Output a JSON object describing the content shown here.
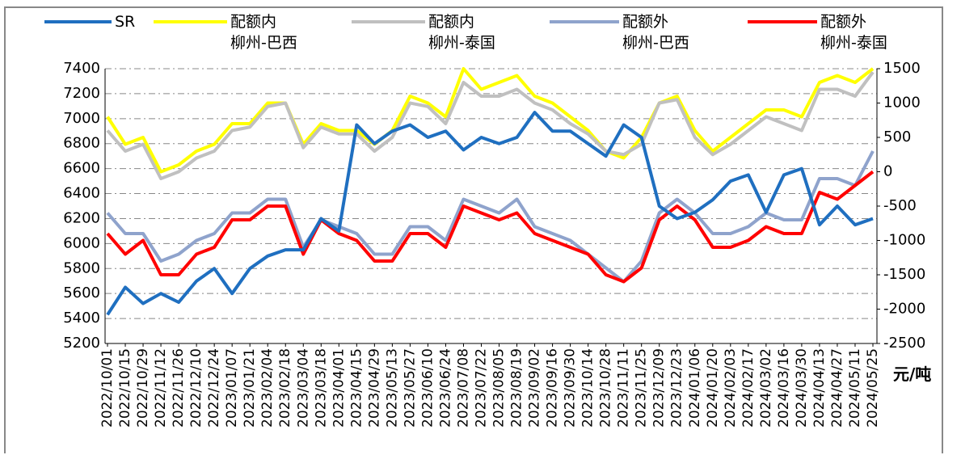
{
  "chart_data": {
    "type": "line",
    "unit_label": "元/吨",
    "categories": [
      "2022/10/01",
      "2022/10/15",
      "2022/10/29",
      "2022/11/12",
      "2022/11/26",
      "2022/12/10",
      "2022/12/24",
      "2023/01/07",
      "2023/01/21",
      "2023/02/04",
      "2023/02/18",
      "2023/03/04",
      "2023/03/18",
      "2023/04/01",
      "2023/04/15",
      "2023/04/29",
      "2023/05/13",
      "2023/05/27",
      "2023/06/10",
      "2023/06/24",
      "2023/07/08",
      "2023/07/22",
      "2023/08/05",
      "2023/08/19",
      "2023/09/02",
      "2023/09/16",
      "2023/09/30",
      "2023/10/14",
      "2023/10/28",
      "2023/11/11",
      "2023/11/25",
      "2023/12/09",
      "2023/12/23",
      "2024/01/06",
      "2024/01/20",
      "2024/02/03",
      "2024/02/17",
      "2024/03/02",
      "2024/03/16",
      "2024/03/30",
      "2024/04/13",
      "2024/04/27",
      "2024/05/11",
      "2024/05/25"
    ],
    "ylim": [
      5200,
      7400
    ],
    "yticks": [
      5200,
      5400,
      5600,
      5800,
      6000,
      6200,
      6400,
      6600,
      6800,
      7000,
      7200,
      7400
    ],
    "y2lim": [
      -2500,
      1500
    ],
    "y2ticks": [
      -2500,
      -2000,
      -1500,
      -1000,
      -500,
      0,
      500,
      1000,
      1500
    ],
    "grid": true,
    "series": [
      {
        "name": "SR",
        "color": "#1f6fc0",
        "values": [
          5430,
          5650,
          5520,
          5600,
          5530,
          5700,
          5800,
          5600,
          5800,
          5900,
          5950,
          5950,
          6200,
          6100,
          6950,
          6800,
          6900,
          6950,
          6850,
          6900,
          6750,
          6850,
          6800,
          6850,
          7050,
          6900,
          6900,
          6800,
          6700,
          6950,
          6850,
          6300,
          6200,
          6250,
          6350,
          6500,
          6550,
          6250,
          6550,
          6600,
          6150,
          6300,
          6150,
          6200
        ]
      },
      {
        "name": "配额内\n柳州-巴西",
        "color": "#ffff00",
        "axis": "y2",
        "values": [
          800,
          400,
          500,
          0,
          100,
          300,
          400,
          700,
          700,
          1000,
          1000,
          400,
          700,
          600,
          600,
          400,
          600,
          1100,
          1000,
          800,
          1500,
          1200,
          1300,
          1400,
          1100,
          1000,
          800,
          600,
          300,
          200,
          500,
          1000,
          1100,
          600,
          300,
          500,
          700,
          900,
          900,
          800,
          1300,
          1400,
          1300,
          1500
        ]
      },
      {
        "name": "配额内\n柳州-泰国",
        "color": "#c0c0c0",
        "axis": "y2",
        "values": [
          600,
          300,
          400,
          -100,
          0,
          200,
          300,
          600,
          650,
          950,
          1000,
          350,
          650,
          550,
          550,
          300,
          500,
          1000,
          950,
          700,
          1300,
          1100,
          1100,
          1200,
          1000,
          900,
          700,
          550,
          300,
          250,
          400,
          1000,
          1050,
          500,
          250,
          400,
          600,
          800,
          700,
          600,
          1200,
          1200,
          1100,
          1450
        ]
      },
      {
        "name": "配额外\n柳州-巴西",
        "color": "#8fa3cc",
        "axis": "y2",
        "values": [
          -600,
          -900,
          -900,
          -1300,
          -1200,
          -1000,
          -900,
          -600,
          -600,
          -400,
          -400,
          -1100,
          -700,
          -800,
          -900,
          -1200,
          -1200,
          -800,
          -800,
          -1000,
          -400,
          -500,
          -600,
          -400,
          -800,
          -900,
          -1000,
          -1200,
          -1400,
          -1600,
          -1300,
          -600,
          -400,
          -600,
          -900,
          -900,
          -800,
          -600,
          -700,
          -700,
          -100,
          -100,
          -200,
          300
        ]
      },
      {
        "name": "配额外\n柳州-泰国",
        "color": "#ff0000",
        "axis": "y2",
        "values": [
          -900,
          -1200,
          -1000,
          -1500,
          -1500,
          -1200,
          -1100,
          -700,
          -700,
          -500,
          -500,
          -1200,
          -700,
          -900,
          -1000,
          -1300,
          -1300,
          -900,
          -900,
          -1100,
          -500,
          -600,
          -700,
          -600,
          -900,
          -1000,
          -1100,
          -1200,
          -1500,
          -1600,
          -1400,
          -700,
          -500,
          -700,
          -1100,
          -1100,
          -1000,
          -800,
          -900,
          -900,
          -300,
          -400,
          -200,
          0
        ]
      }
    ]
  }
}
